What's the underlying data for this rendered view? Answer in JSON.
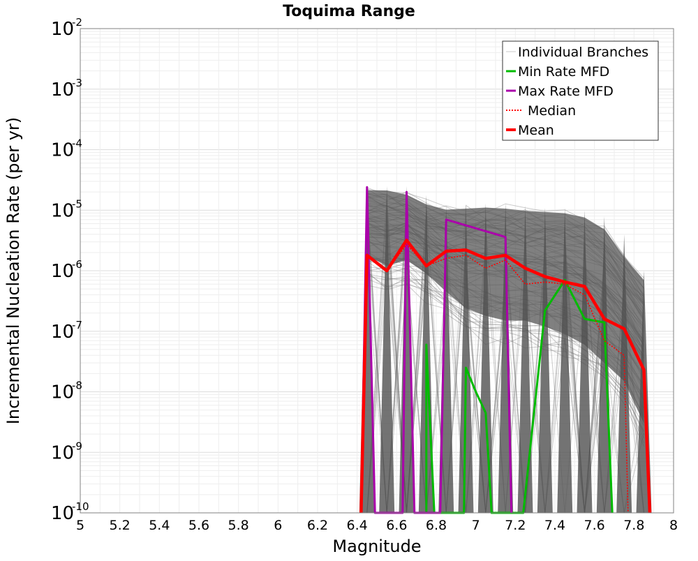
{
  "chart_data": {
    "type": "line",
    "title": "Toquima Range",
    "xlabel": "Magnitude",
    "ylabel": "Incremental Nucleation Rate (per yr)",
    "xlim": [
      5,
      8
    ],
    "ylim": [
      1e-10,
      0.01
    ],
    "yscale": "log",
    "grid": true,
    "legend_position": "top-right",
    "x_ticks": [
      "5",
      "5.2",
      "5.4",
      "5.6",
      "5.8",
      "6",
      "6.2",
      "6.4",
      "6.6",
      "6.8",
      "7",
      "7.2",
      "7.4",
      "7.6",
      "7.8",
      "8"
    ],
    "x_tick_values": [
      5,
      5.2,
      5.4,
      5.6,
      5.8,
      6,
      6.2,
      6.4,
      6.6,
      6.8,
      7,
      7.2,
      7.4,
      7.6,
      7.8,
      8
    ],
    "y_ticks": [
      {
        "base": "10",
        "exp": "-2",
        "value": 0.01
      },
      {
        "base": "10",
        "exp": "-3",
        "value": 0.001
      },
      {
        "base": "10",
        "exp": "-4",
        "value": 0.0001
      },
      {
        "base": "10",
        "exp": "-5",
        "value": 1e-05
      },
      {
        "base": "10",
        "exp": "-6",
        "value": 1e-06
      },
      {
        "base": "10",
        "exp": "-7",
        "value": 1e-07
      },
      {
        "base": "10",
        "exp": "-8",
        "value": 1e-08
      },
      {
        "base": "10",
        "exp": "-9",
        "value": 1e-09
      },
      {
        "base": "10",
        "exp": "-10",
        "value": 1e-10
      }
    ],
    "series": [
      {
        "name": "Min Rate MFD",
        "color": "#00bb00",
        "style": "solid",
        "points": [
          [
            6.75,
            1e-10
          ],
          [
            6.75,
            6e-08
          ],
          [
            6.79,
            1e-10
          ],
          [
            6.94,
            1e-10
          ],
          [
            6.95,
            2.5e-08
          ],
          [
            7.0,
            1e-08
          ],
          [
            7.05,
            4.5e-09
          ],
          [
            7.08,
            1e-10
          ],
          [
            7.24,
            1e-10
          ],
          [
            7.35,
            2.2e-07
          ],
          [
            7.45,
            7e-07
          ],
          [
            7.55,
            1.6e-07
          ],
          [
            7.65,
            1.4e-07
          ],
          [
            7.69,
            1e-10
          ]
        ]
      },
      {
        "name": "Max Rate MFD",
        "color": "#aa00aa",
        "style": "solid",
        "points": [
          [
            6.42,
            1e-10
          ],
          [
            6.45,
            2.4e-05
          ],
          [
            6.49,
            1e-10
          ],
          [
            6.63,
            1e-10
          ],
          [
            6.65,
            2e-05
          ],
          [
            6.69,
            1e-10
          ],
          [
            6.82,
            1e-10
          ],
          [
            6.85,
            7e-06
          ],
          [
            7.15,
            3.6e-06
          ],
          [
            7.18,
            1e-10
          ]
        ]
      },
      {
        "name": "Median",
        "color": "#ff0000",
        "style": "dotted",
        "points": [
          [
            6.42,
            1e-10
          ],
          [
            6.45,
            1.7e-06
          ],
          [
            6.55,
            1e-06
          ],
          [
            6.65,
            2.7e-06
          ],
          [
            6.75,
            1.2e-06
          ],
          [
            6.85,
            1.6e-06
          ],
          [
            6.95,
            1.8e-06
          ],
          [
            7.05,
            1.1e-06
          ],
          [
            7.15,
            1.5e-06
          ],
          [
            7.25,
            6e-07
          ],
          [
            7.35,
            6.5e-07
          ],
          [
            7.45,
            6e-07
          ],
          [
            7.55,
            4e-07
          ],
          [
            7.65,
            7e-08
          ],
          [
            7.75,
            4e-08
          ],
          [
            7.77,
            1e-10
          ]
        ]
      },
      {
        "name": "Mean",
        "color": "#ff0000",
        "style": "solid",
        "points": [
          [
            6.42,
            1e-10
          ],
          [
            6.45,
            1.8e-06
          ],
          [
            6.55,
            1e-06
          ],
          [
            6.65,
            3.2e-06
          ],
          [
            6.75,
            1.2e-06
          ],
          [
            6.85,
            2.1e-06
          ],
          [
            6.95,
            2.2e-06
          ],
          [
            7.05,
            1.6e-06
          ],
          [
            7.15,
            1.8e-06
          ],
          [
            7.25,
            1.1e-06
          ],
          [
            7.35,
            8e-07
          ],
          [
            7.45,
            6.5e-07
          ],
          [
            7.55,
            5.5e-07
          ],
          [
            7.65,
            1.6e-07
          ],
          [
            7.75,
            1.1e-07
          ],
          [
            7.85,
            2.3e-08
          ],
          [
            7.88,
            1e-10
          ]
        ]
      }
    ],
    "branch_peaks": [
      {
        "x": 6.45,
        "y": 2.5e-05
      },
      {
        "x": 6.55,
        "y": 2.5e-05
      },
      {
        "x": 6.65,
        "y": 2.5e-05
      },
      {
        "x": 6.75,
        "y": 1.8e-05
      },
      {
        "x": 6.85,
        "y": 1.2e-05
      },
      {
        "x": 6.95,
        "y": 1.2e-05
      },
      {
        "x": 7.05,
        "y": 1.3e-05
      },
      {
        "x": 7.15,
        "y": 1.3e-05
      },
      {
        "x": 7.25,
        "y": 1.2e-05
      },
      {
        "x": 7.35,
        "y": 1.1e-05
      },
      {
        "x": 7.45,
        "y": 1.1e-05
      },
      {
        "x": 7.55,
        "y": 1e-05
      },
      {
        "x": 7.65,
        "y": 8e-06
      },
      {
        "x": 7.75,
        "y": 4e-06
      },
      {
        "x": 7.85,
        "y": 1e-06
      }
    ],
    "legend": [
      {
        "label": "Individual Branches",
        "color": "#c8c8c8",
        "style": "thin"
      },
      {
        "label": "Min Rate MFD",
        "color": "#00bb00",
        "style": "solid"
      },
      {
        "label": "Max Rate MFD",
        "color": "#aa00aa",
        "style": "solid"
      },
      {
        "label": "Median",
        "color": "#ff0000",
        "style": "dotted"
      },
      {
        "label": "Mean",
        "color": "#ff0000",
        "style": "thick"
      }
    ]
  }
}
